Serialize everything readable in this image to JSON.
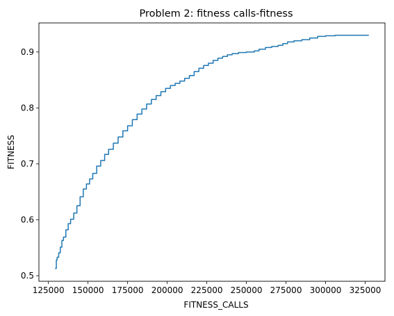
{
  "chart_data": {
    "type": "line",
    "title": "Problem 2: fitness calls-fitness",
    "xlabel": "FITNESS_CALLS",
    "ylabel": "FITNESS",
    "xlim": [
      119000,
      337500
    ],
    "ylim": [
      0.49,
      0.952
    ],
    "xticks": [
      125000,
      150000,
      175000,
      200000,
      225000,
      250000,
      275000,
      300000,
      325000
    ],
    "yticks": [
      0.5,
      0.6,
      0.7,
      0.8,
      0.9
    ],
    "grid": false,
    "series": [
      {
        "color": "#1f77b4",
        "x": [
          129500,
          130000,
          130500,
          131500,
          132500,
          133500,
          134500,
          136000,
          137500,
          139000,
          141000,
          143000,
          145000,
          147000,
          149000,
          151000,
          153000,
          155500,
          158000,
          160500,
          163000,
          166000,
          169000,
          172000,
          175000,
          178000,
          181000,
          184000,
          187000,
          190000,
          193000,
          196000,
          199000,
          202000,
          205000,
          208000,
          211000,
          214000,
          217000,
          220000,
          223000,
          226000,
          229000,
          232000,
          235000,
          238000,
          241000,
          245000,
          250000,
          255000,
          258000,
          262000,
          266000,
          270000,
          273000,
          276000,
          280000,
          285000,
          290000,
          295000,
          300000,
          306000,
          310000,
          315000,
          320000,
          327000
        ],
        "y": [
          0.513,
          0.528,
          0.533,
          0.541,
          0.551,
          0.563,
          0.569,
          0.582,
          0.593,
          0.601,
          0.612,
          0.625,
          0.641,
          0.655,
          0.664,
          0.673,
          0.683,
          0.696,
          0.706,
          0.717,
          0.726,
          0.737,
          0.748,
          0.759,
          0.768,
          0.779,
          0.789,
          0.798,
          0.807,
          0.815,
          0.822,
          0.829,
          0.835,
          0.84,
          0.844,
          0.848,
          0.853,
          0.858,
          0.865,
          0.871,
          0.876,
          0.88,
          0.885,
          0.889,
          0.892,
          0.895,
          0.897,
          0.899,
          0.9,
          0.902,
          0.905,
          0.908,
          0.91,
          0.912,
          0.915,
          0.918,
          0.92,
          0.922,
          0.925,
          0.928,
          0.929,
          0.93,
          0.93,
          0.93,
          0.93,
          0.93
        ]
      }
    ]
  }
}
